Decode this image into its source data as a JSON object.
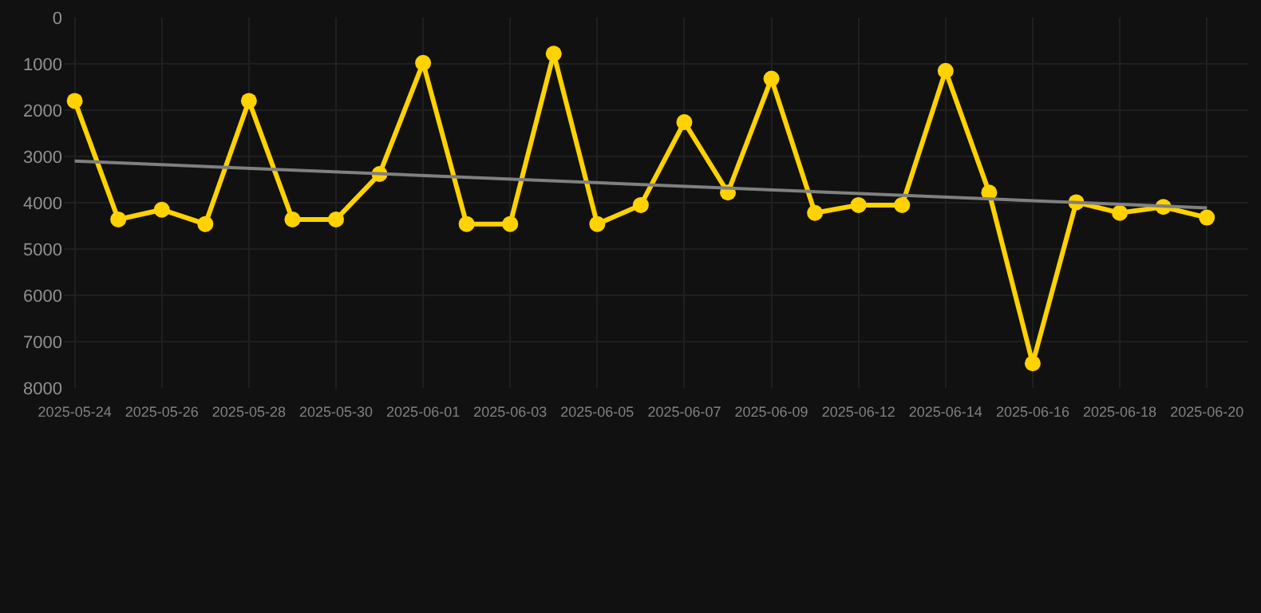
{
  "chart_data": {
    "type": "line",
    "categories": [
      "2025-05-24",
      null,
      "2025-05-26",
      null,
      "2025-05-28",
      null,
      "2025-05-30",
      null,
      "2025-06-01",
      null,
      "2025-06-03",
      null,
      "2025-06-05",
      null,
      "2025-06-07",
      null,
      "2025-06-09",
      null,
      "2025-06-12",
      null,
      "2025-06-14",
      null,
      "2025-06-16",
      null,
      "2025-06-18",
      null,
      "2025-06-20"
    ],
    "series": [
      {
        "color": "#ffd200",
        "marker": "circle",
        "values": [
          1800,
          4360,
          4150,
          4460,
          1800,
          4360,
          4360,
          3380,
          980,
          4460,
          4460,
          780,
          4460,
          4050,
          2260,
          3780,
          1320,
          4220,
          4050,
          4050,
          1150,
          3780,
          7470,
          3990,
          4220,
          4090,
          4320
        ]
      },
      {
        "color": "#808080",
        "marker": "none",
        "values": [
          3100,
          null,
          null,
          null,
          null,
          null,
          null,
          null,
          null,
          null,
          null,
          null,
          null,
          null,
          null,
          null,
          null,
          null,
          null,
          null,
          null,
          null,
          null,
          null,
          null,
          null,
          4110
        ]
      }
    ],
    "ylim": [
      8000,
      0
    ],
    "yticks": [
      0,
      1000,
      2000,
      3000,
      4000,
      5000,
      6000,
      7000,
      8000
    ],
    "grid": true
  }
}
